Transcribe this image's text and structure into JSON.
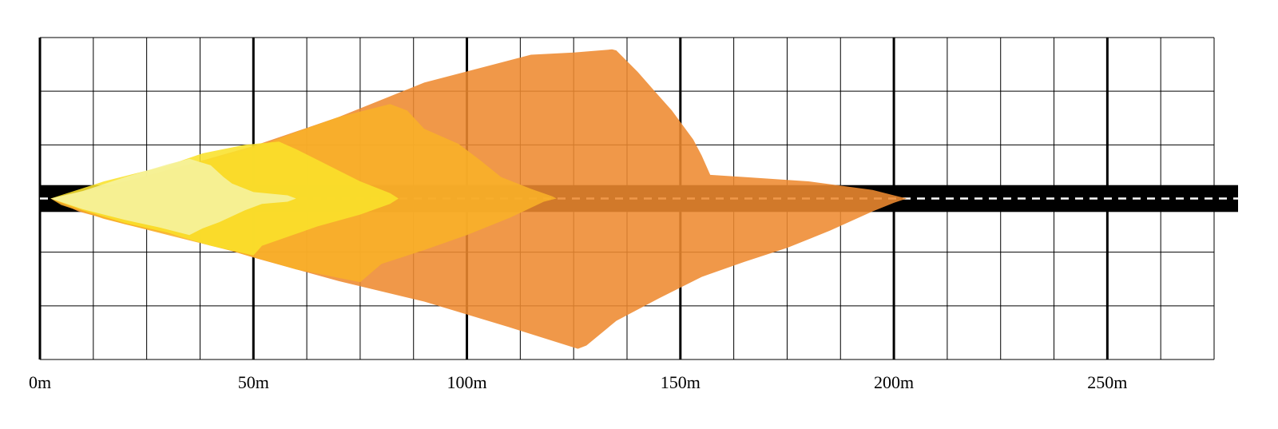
{
  "chart_data": {
    "type": "area",
    "x_unit": "m",
    "xlim": [
      0,
      275
    ],
    "x_ticks": [
      {
        "value": 0,
        "label": "0m"
      },
      {
        "value": 50,
        "label": "50m"
      },
      {
        "value": 100,
        "label": "100m"
      },
      {
        "value": 150,
        "label": "150m"
      },
      {
        "value": 200,
        "label": "200m"
      },
      {
        "value": 250,
        "label": "250m"
      }
    ],
    "minor_grid_step": 12.5,
    "ylim": [
      -15,
      15
    ],
    "y_grid_step": 5,
    "grid": true,
    "road": {
      "y_center": 0,
      "width": 2.5,
      "lane_line": "dashed"
    },
    "colors": {
      "road": "#000000",
      "lane_line": "#ffffff",
      "grid": "#000000",
      "series": [
        "#ee8a30",
        "#f8b128",
        "#f9e12a",
        "#f5f2a0"
      ]
    },
    "series": [
      {
        "points": [
          [
            2.5,
            0
          ],
          [
            9,
            0.6
          ],
          [
            20,
            1.6
          ],
          [
            35,
            3.2
          ],
          [
            50,
            4.9
          ],
          [
            70,
            7.6
          ],
          [
            90,
            10.8
          ],
          [
            115,
            13.4
          ],
          [
            125,
            13.6
          ],
          [
            134,
            13.9
          ],
          [
            135,
            13.8
          ],
          [
            137,
            13
          ],
          [
            140,
            11.8
          ],
          [
            144,
            10
          ],
          [
            148,
            8.2
          ],
          [
            153,
            5.5
          ],
          [
            155,
            4
          ],
          [
            157,
            2.2
          ],
          [
            165,
            2.0
          ],
          [
            180,
            1.6
          ],
          [
            195,
            0.8
          ],
          [
            200,
            0.3
          ],
          [
            203,
            0
          ],
          [
            200,
            -0.4
          ],
          [
            195,
            -1.2
          ],
          [
            185,
            -3
          ],
          [
            175,
            -4.6
          ],
          [
            165,
            -5.9
          ],
          [
            155,
            -7.3
          ],
          [
            145,
            -9.3
          ],
          [
            135,
            -11.4
          ],
          [
            128,
            -13.7
          ],
          [
            126,
            -14
          ],
          [
            110,
            -12
          ],
          [
            90,
            -9.6
          ],
          [
            70,
            -7.7
          ],
          [
            50,
            -5.5
          ],
          [
            35,
            -3.7
          ],
          [
            20,
            -2.4
          ],
          [
            9,
            -1.2
          ],
          [
            2.5,
            0
          ]
        ]
      },
      {
        "points": [
          [
            2.5,
            0
          ],
          [
            20,
            1.4
          ],
          [
            35,
            3.1
          ],
          [
            50,
            4.7
          ],
          [
            60,
            6.2
          ],
          [
            70,
            7.6
          ],
          [
            82,
            8.8
          ],
          [
            86,
            8.2
          ],
          [
            90,
            6.5
          ],
          [
            98,
            5.1
          ],
          [
            103,
            3.6
          ],
          [
            108,
            2.0
          ],
          [
            115,
            0.9
          ],
          [
            120,
            0.2
          ],
          [
            121,
            0
          ],
          [
            118,
            -0.3
          ],
          [
            110,
            -1.8
          ],
          [
            100,
            -3.4
          ],
          [
            90,
            -4.8
          ],
          [
            80,
            -6.1
          ],
          [
            75,
            -7.8
          ],
          [
            60,
            -6.6
          ],
          [
            45,
            -4.9
          ],
          [
            30,
            -3.4
          ],
          [
            15,
            -1.9
          ],
          [
            5,
            -0.6
          ],
          [
            2.5,
            0
          ]
        ]
      },
      {
        "points": [
          [
            2.5,
            0
          ],
          [
            15,
            1.6
          ],
          [
            30,
            3.1
          ],
          [
            38,
            4.2
          ],
          [
            48,
            5.0
          ],
          [
            56,
            5.3
          ],
          [
            60,
            4.6
          ],
          [
            65,
            3.6
          ],
          [
            70,
            2.6
          ],
          [
            75,
            1.6
          ],
          [
            82,
            0.5
          ],
          [
            84,
            0
          ],
          [
            82,
            -0.5
          ],
          [
            75,
            -1.5
          ],
          [
            65,
            -2.6
          ],
          [
            60,
            -3.3
          ],
          [
            52,
            -4.4
          ],
          [
            50,
            -5.3
          ],
          [
            40,
            -4.4
          ],
          [
            30,
            -3.2
          ],
          [
            20,
            -2.3
          ],
          [
            10,
            -1.1
          ],
          [
            2.5,
            0
          ]
        ]
      },
      {
        "points": [
          [
            2.5,
            0
          ],
          [
            10,
            0.7
          ],
          [
            20,
            2.0
          ],
          [
            30,
            3.2
          ],
          [
            35,
            3.7
          ],
          [
            40,
            3.1
          ],
          [
            43,
            2.0
          ],
          [
            45,
            1.4
          ],
          [
            50,
            0.6
          ],
          [
            58,
            0.3
          ],
          [
            60,
            0
          ],
          [
            58,
            -0.3
          ],
          [
            52,
            -0.5
          ],
          [
            48,
            -1.1
          ],
          [
            42,
            -2.2
          ],
          [
            38,
            -2.8
          ],
          [
            35,
            -3.4
          ],
          [
            28,
            -2.7
          ],
          [
            20,
            -2.0
          ],
          [
            10,
            -1.0
          ],
          [
            2.5,
            0
          ]
        ]
      }
    ]
  }
}
